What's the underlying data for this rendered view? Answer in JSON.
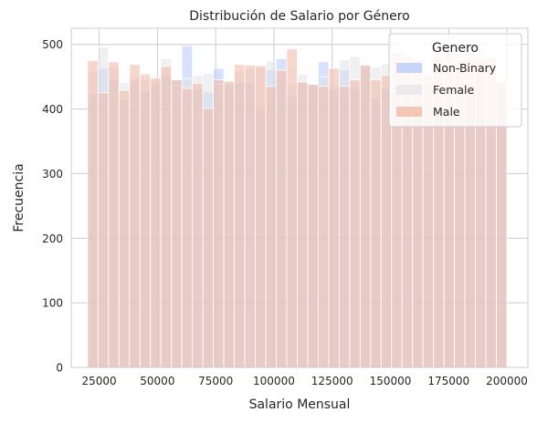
{
  "chart_data": {
    "type": "bar",
    "title": "Distribución de Salario por Género",
    "xlabel": "Salario Mensual",
    "ylabel": "Frecuencia",
    "xlim": [
      13000,
      209000
    ],
    "ylim": [
      0,
      525
    ],
    "x_ticks": [
      25000,
      50000,
      75000,
      100000,
      125000,
      150000,
      175000,
      200000
    ],
    "x_tick_labels": [
      "25000",
      "50000",
      "75000",
      "100000",
      "125000",
      "150000",
      "175000",
      "200000"
    ],
    "y_ticks": [
      0,
      100,
      200,
      300,
      400,
      500
    ],
    "y_tick_labels": [
      "0",
      "100",
      "200",
      "300",
      "400",
      "500"
    ],
    "grid": true,
    "legend": {
      "title": "Genero",
      "placement": "top-right"
    },
    "bin_edges": [
      20000,
      24500,
      29000,
      33500,
      38000,
      42500,
      47000,
      51500,
      56000,
      60500,
      65000,
      69500,
      74000,
      78500,
      83000,
      87500,
      92000,
      96500,
      101000,
      105500,
      110000,
      114500,
      119000,
      123500,
      128000,
      132500,
      137000,
      141500,
      146000,
      150500,
      155000,
      159500,
      164000,
      168500,
      173000,
      177500,
      182000,
      186500,
      191000,
      195500,
      200000
    ],
    "series": [
      {
        "name": "Non-Binary",
        "color": "#b5c9f7",
        "values": [
          422,
          463,
          446,
          414,
          444,
          427,
          437,
          453,
          445,
          498,
          431,
          426,
          463,
          437,
          441,
          441,
          397,
          461,
          478,
          420,
          440,
          438,
          473,
          430,
          461,
          432,
          467,
          418,
          431,
          425,
          420,
          430,
          440,
          440,
          436,
          445,
          439,
          445,
          441,
          438
        ]
      },
      {
        "name": "Female",
        "color": "#e4e4ea",
        "values": [
          457,
          496,
          465,
          441,
          449,
          445,
          445,
          478,
          437,
          447,
          452,
          455,
          439,
          441,
          459,
          461,
          464,
          474,
          460,
          438,
          454,
          438,
          450,
          438,
          476,
          481,
          464,
          465,
          470,
          441,
          445,
          463,
          455,
          460,
          467,
          470,
          441,
          478,
          468,
          440
        ]
      },
      {
        "name": "Male",
        "color": "#f0b7a2",
        "values": [
          475,
          425,
          473,
          429,
          469,
          454,
          448,
          466,
          445,
          432,
          440,
          401,
          445,
          443,
          469,
          468,
          467,
          435,
          460,
          493,
          442,
          438,
          435,
          463,
          435,
          445,
          468,
          445,
          452,
          488,
          484,
          476,
          452,
          485,
          492,
          476,
          477,
          478,
          480,
          442
        ]
      }
    ]
  }
}
